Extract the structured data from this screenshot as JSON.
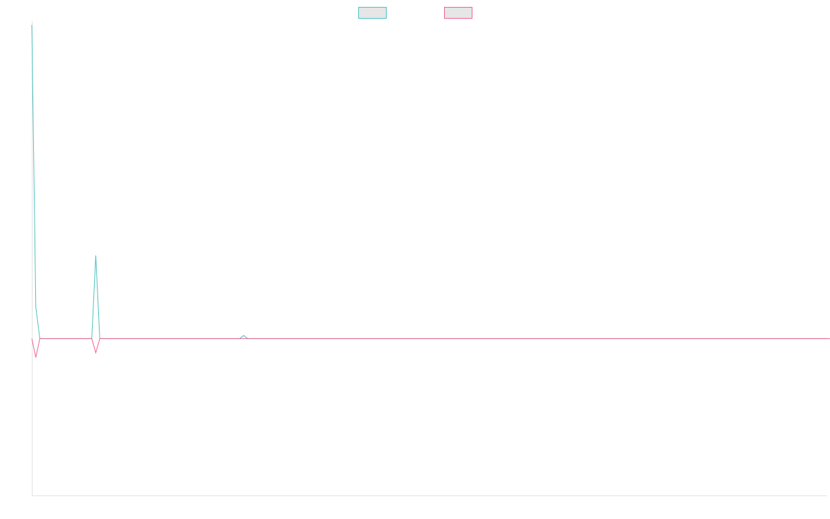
{
  "chart_data": {
    "type": "line",
    "title": "",
    "xlabel": "",
    "ylabel": "",
    "legend_position": "top-center",
    "grid": false,
    "y_axis_range": [
      -100,
      200
    ],
    "series": [
      {
        "color": "#4bc0c0",
        "legend_fill": "#e6e6e6",
        "values": [
          200,
          20,
          0,
          0,
          0,
          0,
          0,
          0,
          0,
          0,
          0,
          0,
          0,
          0,
          0,
          0,
          53,
          0,
          0,
          0,
          0,
          0,
          0,
          0,
          0,
          0,
          0,
          0,
          0,
          0,
          0,
          0,
          0,
          0,
          0,
          0,
          0,
          0,
          0,
          0,
          0,
          0,
          0,
          0,
          0,
          0,
          0,
          0,
          0,
          0,
          0,
          0,
          0,
          2,
          0,
          0,
          0,
          0,
          0,
          0,
          0,
          0,
          0,
          0,
          0,
          0,
          0,
          0,
          0,
          0,
          0,
          0,
          0,
          0,
          0,
          0,
          0,
          0,
          0,
          0,
          0,
          0,
          0,
          0,
          0,
          0,
          0,
          0,
          0,
          0,
          0,
          0,
          0,
          0,
          0,
          0,
          0,
          0,
          0,
          0,
          0,
          0,
          0,
          0,
          0,
          0,
          0,
          0,
          0,
          0,
          0,
          0,
          0,
          0,
          0,
          0,
          0,
          0,
          0,
          0,
          0,
          0,
          0,
          0,
          0,
          0,
          0,
          0,
          0,
          0,
          0,
          0,
          0,
          0,
          0,
          0,
          0,
          0,
          0,
          0,
          0,
          0,
          0,
          0,
          0,
          0,
          0,
          0,
          0,
          0,
          0,
          0,
          0,
          0,
          0,
          0,
          0,
          0,
          0,
          0,
          0,
          0,
          0,
          0,
          0,
          0,
          0,
          0,
          0,
          0,
          0,
          0,
          0,
          0,
          0,
          0,
          0,
          0,
          0,
          0,
          0,
          0,
          0,
          0,
          0,
          0,
          0,
          0,
          0,
          0,
          0,
          0,
          0,
          0,
          0,
          0,
          0,
          0,
          0,
          0
        ]
      },
      {
        "color": "#f0608a",
        "legend_fill": "#e6e6e6",
        "values": [
          0,
          -12,
          0,
          0,
          0,
          0,
          0,
          0,
          0,
          0,
          0,
          0,
          0,
          0,
          0,
          0,
          -9,
          0,
          0,
          0,
          0,
          0,
          0,
          0,
          0,
          0,
          0,
          0,
          0,
          0,
          0,
          0,
          0,
          0,
          0,
          0,
          0,
          0,
          0,
          0,
          0,
          0,
          0,
          0,
          0,
          0,
          0,
          0,
          0,
          0,
          0,
          0,
          0,
          0,
          0,
          0,
          0,
          0,
          0,
          0,
          0,
          0,
          0,
          0,
          0,
          0,
          0,
          0,
          0,
          0,
          0,
          0,
          0,
          0,
          0,
          0,
          0,
          0,
          0,
          0,
          0,
          0,
          0,
          0,
          0,
          0,
          0,
          0,
          0,
          0,
          0,
          0,
          0,
          0,
          0,
          0,
          0,
          0,
          0,
          0,
          0,
          0,
          0,
          0,
          0,
          0,
          0,
          0,
          0,
          0,
          0,
          0,
          0,
          0,
          0,
          0,
          0,
          0,
          0,
          0,
          0,
          0,
          0,
          0,
          0,
          0,
          0,
          0,
          0,
          0,
          0,
          0,
          0,
          0,
          0,
          0,
          0,
          0,
          0,
          0,
          0,
          0,
          0,
          0,
          0,
          0,
          0,
          0,
          0,
          0,
          0,
          0,
          0,
          0,
          0,
          0,
          0,
          0,
          0,
          0,
          0,
          0,
          0,
          0,
          0,
          0,
          0,
          0,
          0,
          0,
          0,
          0,
          0,
          0,
          0,
          0,
          0,
          0,
          0,
          0,
          0,
          0,
          0,
          0,
          0,
          0,
          0,
          0,
          0,
          0,
          0,
          0,
          0,
          0,
          0,
          0,
          0,
          0,
          0,
          0,
          0,
          0
        ]
      }
    ]
  }
}
